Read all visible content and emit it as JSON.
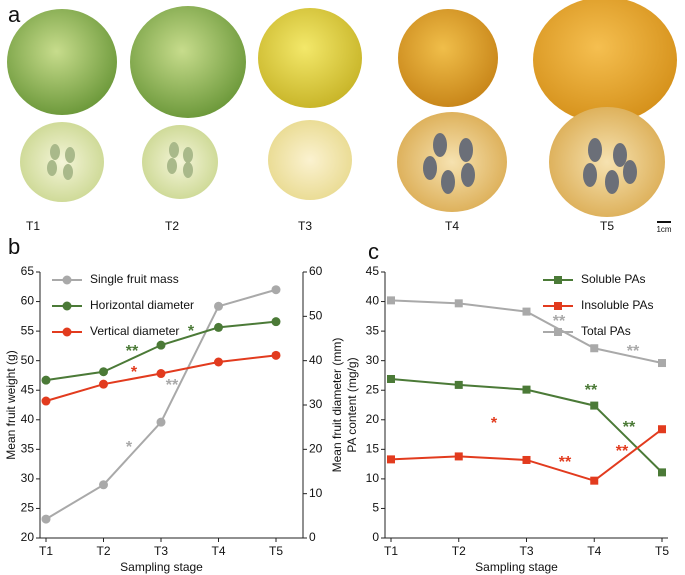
{
  "photo_panel": {
    "label": "a",
    "stages": [
      "T1",
      "T2",
      "T3",
      "T4",
      "T5"
    ],
    "scale_label": "1cm"
  },
  "chart_data": [
    {
      "type": "line",
      "label": "b",
      "marker": "circle",
      "legend": "upper left",
      "x_label": "Sampling stage",
      "y_label": "Mean fruit weight (g)",
      "y2_label": "Mean fruit diameter (mm)",
      "categories": [
        "T1",
        "T2",
        "T3",
        "T4",
        "T5"
      ],
      "ylim": [
        20,
        65
      ],
      "yticks": [
        20,
        25,
        30,
        35,
        40,
        45,
        50,
        55,
        60,
        65
      ],
      "y2lim": [
        0,
        60
      ],
      "y2ticks": [
        0,
        10,
        20,
        30,
        40,
        50,
        60
      ],
      "series": [
        {
          "name": "Single fruit mass",
          "color": "#a9a9a9",
          "values": [
            23.2,
            29.0,
            39.6,
            59.2,
            62.0
          ]
        },
        {
          "name": "Horizontal diameter",
          "color": "#4b7a37",
          "axis": "y2",
          "values": [
            35.6,
            37.5,
            43.5,
            47.5,
            48.8
          ]
        },
        {
          "name": "Vertical diameter",
          "color": "#e23b1e",
          "axis": "y2",
          "values": [
            30.9,
            34.7,
            37.1,
            39.7,
            41.2
          ]
        }
      ],
      "annotations": [
        {
          "text": "**",
          "color": "#4b7a37"
        },
        {
          "text": "*",
          "color": "#4b7a37"
        },
        {
          "text": "*",
          "color": "#e23b1e"
        },
        {
          "text": "*",
          "color": "#a9a9a9"
        },
        {
          "text": "**",
          "color": "#a9a9a9"
        }
      ]
    },
    {
      "type": "line",
      "label": "c",
      "marker": "square",
      "legend": "upper right",
      "x_label": "Sampling stage",
      "y_label": "PA content (mg/g)",
      "categories": [
        "T1",
        "T2",
        "T3",
        "T4",
        "T5"
      ],
      "ylim": [
        0,
        45
      ],
      "yticks": [
        0,
        5,
        10,
        15,
        20,
        25,
        30,
        35,
        40,
        45
      ],
      "series": [
        {
          "name": "Soluble PAs",
          "color": "#4b7a37",
          "values": [
            26.9,
            25.9,
            25.1,
            22.4,
            11.1
          ]
        },
        {
          "name": "Insoluble PAs",
          "color": "#e23b1e",
          "values": [
            13.3,
            13.8,
            13.2,
            9.7,
            18.4
          ]
        },
        {
          "name": "Total PAs",
          "color": "#a9a9a9",
          "values": [
            40.2,
            39.7,
            38.3,
            32.1,
            29.6
          ]
        }
      ],
      "annotations": [
        {
          "text": "**",
          "color": "#a9a9a9"
        },
        {
          "text": "**",
          "color": "#a9a9a9"
        },
        {
          "text": "**",
          "color": "#4b7a37"
        },
        {
          "text": "**",
          "color": "#4b7a37"
        },
        {
          "text": "*",
          "color": "#e23b1e"
        },
        {
          "text": "**",
          "color": "#e23b1e"
        },
        {
          "text": "**",
          "color": "#e23b1e"
        }
      ]
    }
  ]
}
